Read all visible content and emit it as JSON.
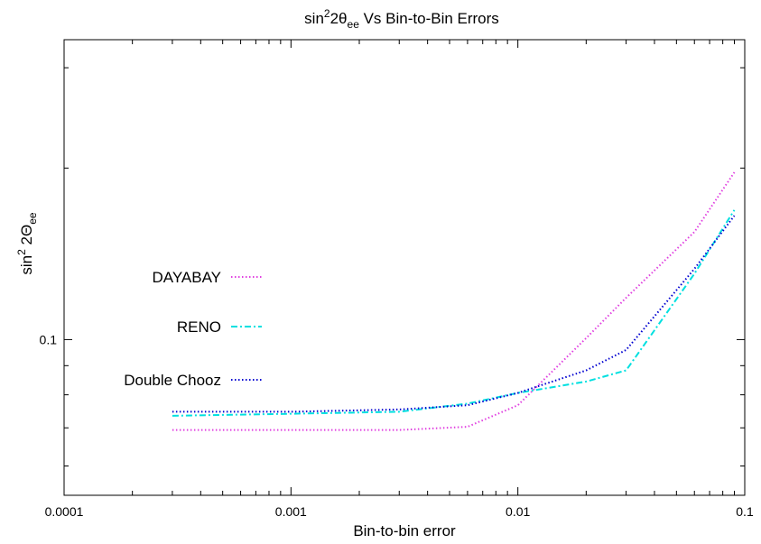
{
  "chart_data": {
    "type": "line",
    "title_main": "sin",
    "title_sup": "2",
    "title_mid": "2θ",
    "title_sub": "ee",
    "title_rest": " Vs Bin-to-Bin Errors",
    "xlabel": "Bin-to-bin error",
    "ylabel_main": "sin",
    "ylabel_sup": "2",
    "ylabel_mid": " 2Θ",
    "ylabel_sub": "ee",
    "x_scale": "log",
    "y_scale": "log",
    "xlim": [
      0.0001,
      0.1
    ],
    "ylim": [
      0.0533,
      0.336
    ],
    "x_ticks": [
      {
        "value": 0.0001,
        "label": "0.0001"
      },
      {
        "value": 0.001,
        "label": "0.001"
      },
      {
        "value": 0.01,
        "label": "0.01"
      },
      {
        "value": 0.1,
        "label": "0.1"
      }
    ],
    "y_ticks": [
      {
        "value": 0.1,
        "label": "0.1"
      }
    ],
    "grid": false,
    "legend_position": "left",
    "series": [
      {
        "name": "DAYABAY",
        "color": "#e040e0",
        "dash": "dotted",
        "x": [
          0.0003,
          0.001,
          0.003,
          0.006,
          0.01,
          0.02,
          0.03,
          0.06,
          0.09
        ],
        "y": [
          0.0694,
          0.0694,
          0.0694,
          0.0703,
          0.0767,
          0.1006,
          0.1184,
          0.1545,
          0.1966
        ]
      },
      {
        "name": "RENO",
        "color": "#00e0e0",
        "dash": "dash-dot",
        "x": [
          0.0003,
          0.001,
          0.003,
          0.006,
          0.01,
          0.02,
          0.03,
          0.06,
          0.09
        ],
        "y": [
          0.0735,
          0.0741,
          0.0747,
          0.0772,
          0.0806,
          0.0844,
          0.0883,
          0.1305,
          0.1688
        ]
      },
      {
        "name": "Double Chooz",
        "color": "#0000d0",
        "dash": "dotted",
        "x": [
          0.0003,
          0.001,
          0.003,
          0.006,
          0.01,
          0.02,
          0.03,
          0.06,
          0.09
        ],
        "y": [
          0.0747,
          0.0747,
          0.0754,
          0.0767,
          0.0806,
          0.0883,
          0.0959,
          0.1331,
          0.165
        ]
      }
    ]
  }
}
